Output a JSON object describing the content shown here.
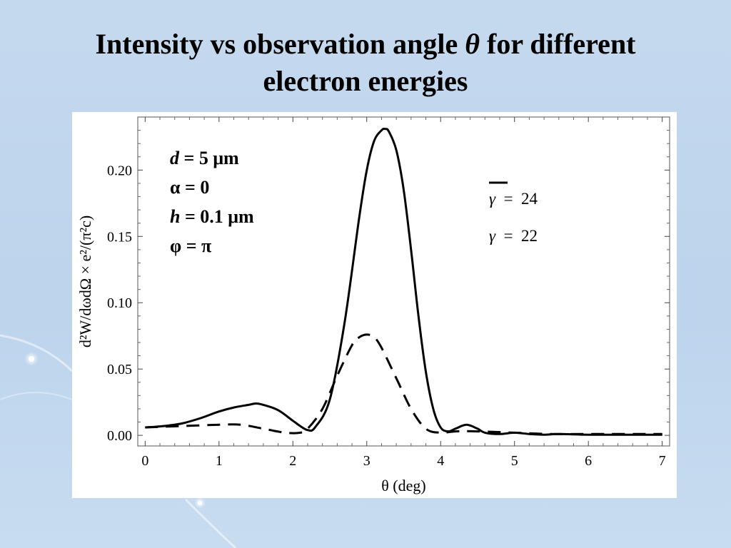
{
  "slide": {
    "title_line1_pre": "Intensity vs observation angle ",
    "title_theta": "θ",
    "title_line1_post": " for different",
    "title_line2": "electron energies"
  },
  "parameters": [
    {
      "sym": "d",
      "text": " = 5 μm",
      "italic": true
    },
    {
      "sym": "α",
      "text": " = 0",
      "italic": false
    },
    {
      "sym": "h",
      "text": " = 0.1 μm",
      "italic": true
    },
    {
      "sym": "φ",
      "text": " = π",
      "italic": false
    }
  ],
  "colors": {
    "curve": "#000000",
    "panel": "#ffffff",
    "background": "#c5d9ee"
  },
  "chart_data": {
    "type": "line",
    "xlabel": "θ (deg)",
    "ylabel": "d²W/dωdΩ × e²/(π²c)",
    "xlim": [
      -0.1,
      7.1
    ],
    "ylim": [
      -0.008,
      0.24
    ],
    "xticks": [
      0,
      1,
      2,
      3,
      4,
      5,
      6,
      7
    ],
    "yticks": [
      0.0,
      0.05,
      0.1,
      0.15,
      0.2
    ],
    "ytick_labels": [
      "0.00",
      "0.05",
      "0.10",
      "0.15",
      "0.20"
    ],
    "grid": false,
    "legend_position": "top-right",
    "series": [
      {
        "name": "γ = 24",
        "label_sym": "γ",
        "label_rest": "  =  24",
        "dash": "solid",
        "x": [
          0,
          0.25,
          0.5,
          0.75,
          1.0,
          1.2,
          1.4,
          1.5,
          1.6,
          1.8,
          2.0,
          2.1,
          2.2,
          2.3,
          2.5,
          2.7,
          2.9,
          3.0,
          3.1,
          3.2,
          3.25,
          3.3,
          3.4,
          3.5,
          3.6,
          3.7,
          3.8,
          3.9,
          4.0,
          4.1,
          4.2,
          4.35,
          4.5,
          4.6,
          4.8,
          5.0,
          5.2,
          5.4,
          5.6,
          6.0,
          6.5,
          7.0
        ],
        "y": [
          0.006,
          0.007,
          0.009,
          0.013,
          0.018,
          0.021,
          0.023,
          0.024,
          0.023,
          0.019,
          0.011,
          0.007,
          0.004,
          0.006,
          0.027,
          0.085,
          0.165,
          0.2,
          0.222,
          0.23,
          0.231,
          0.229,
          0.215,
          0.185,
          0.14,
          0.09,
          0.048,
          0.02,
          0.006,
          0.003,
          0.005,
          0.008,
          0.005,
          0.002,
          0.001,
          0.002,
          0.001,
          0.0005,
          0.001,
          0.0005,
          0.0005,
          0.0005
        ]
      },
      {
        "name": "γ = 22",
        "label_sym": "γ",
        "label_rest": "  =  22",
        "dash": "dashed",
        "x": [
          0,
          0.5,
          1.0,
          1.3,
          1.6,
          1.9,
          2.1,
          2.2,
          2.4,
          2.6,
          2.8,
          2.9,
          3.0,
          3.1,
          3.2,
          3.4,
          3.6,
          3.8,
          4.0,
          4.2,
          4.5,
          5.0,
          5.5,
          6.0,
          7.0
        ],
        "y": [
          0.006,
          0.007,
          0.008,
          0.008,
          0.005,
          0.002,
          0.002,
          0.005,
          0.02,
          0.045,
          0.068,
          0.074,
          0.076,
          0.074,
          0.066,
          0.043,
          0.02,
          0.005,
          0.002,
          0.003,
          0.003,
          0.002,
          0.001,
          0.001,
          0.001
        ]
      }
    ]
  }
}
